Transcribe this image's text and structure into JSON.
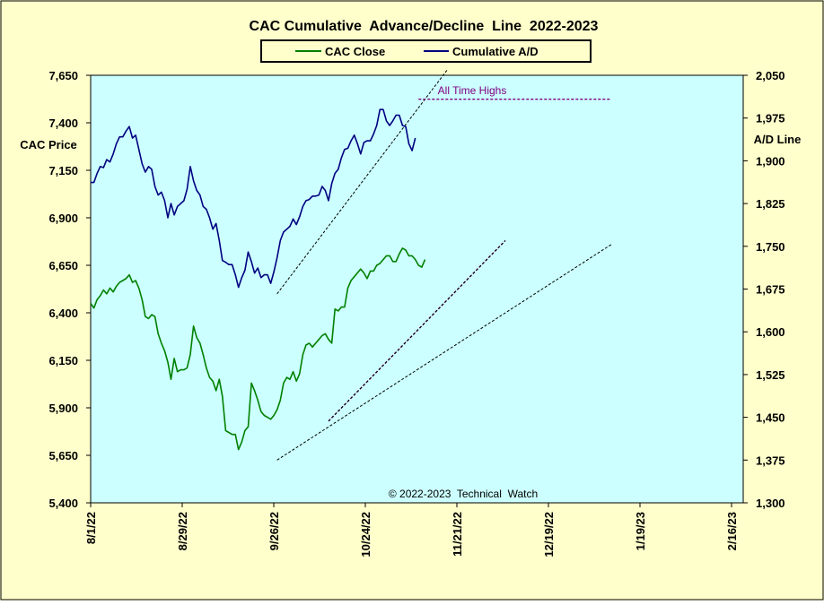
{
  "chart_data": {
    "type": "line",
    "title": "CAC Cumulative  Advance/Decline  Line  2022-2023",
    "legend": {
      "placement": "top-center",
      "entries": [
        {
          "name": "CAC Close",
          "color": "#008000"
        },
        {
          "name": "Cumulative A/D",
          "color": "#000080"
        }
      ]
    },
    "y_left": {
      "label": "CAC Price",
      "range": [
        5400,
        7650
      ],
      "ticks": [
        "7,650",
        "7,400",
        "7,150",
        "6,900",
        "6,650",
        "6,400",
        "6,150",
        "5,900",
        "5,650",
        "5,400"
      ]
    },
    "y_right": {
      "label": "A/D Line",
      "range": [
        1300,
        2050
      ],
      "ticks": [
        "2,050",
        "1,975",
        "1,900",
        "1,825",
        "1,750",
        "1,675",
        "1,600",
        "1,525",
        "1,450",
        "1,375",
        "1,300"
      ]
    },
    "x_ticks": [
      "8/1/22",
      "8/29/22",
      "9/26/22",
      "10/24/22",
      "11/21/22",
      "12/19/22",
      "1/19/23",
      "2/16/23"
    ],
    "x_range_days": [
      0,
      203
    ],
    "plot_background": "#ccffff",
    "frame_background": "#ffffcc",
    "series": [
      {
        "name": "CAC Close",
        "axis": "left",
        "color": "#008000",
        "points": [
          [
            0,
            6450
          ],
          [
            1,
            6425
          ],
          [
            2,
            6470
          ],
          [
            3,
            6490
          ],
          [
            4,
            6520
          ],
          [
            5,
            6500
          ],
          [
            6,
            6530
          ],
          [
            7,
            6510
          ],
          [
            8,
            6540
          ],
          [
            9,
            6560
          ],
          [
            10,
            6570
          ],
          [
            11,
            6580
          ],
          [
            12,
            6600
          ],
          [
            13,
            6560
          ],
          [
            14,
            6570
          ],
          [
            15,
            6530
          ],
          [
            16,
            6470
          ],
          [
            17,
            6380
          ],
          [
            18,
            6370
          ],
          [
            19,
            6390
          ],
          [
            20,
            6380
          ],
          [
            21,
            6290
          ],
          [
            22,
            6240
          ],
          [
            23,
            6200
          ],
          [
            24,
            6140
          ],
          [
            25,
            6050
          ],
          [
            26,
            6160
          ],
          [
            27,
            6090
          ],
          [
            28,
            6100
          ],
          [
            29,
            6100
          ],
          [
            30,
            6110
          ],
          [
            31,
            6180
          ],
          [
            32,
            6330
          ],
          [
            33,
            6270
          ],
          [
            34,
            6240
          ],
          [
            35,
            6180
          ],
          [
            36,
            6110
          ],
          [
            37,
            6060
          ],
          [
            38,
            6040
          ],
          [
            39,
            5990
          ],
          [
            40,
            6050
          ],
          [
            41,
            5960
          ],
          [
            42,
            5780
          ],
          [
            43,
            5770
          ],
          [
            44,
            5760
          ],
          [
            45,
            5760
          ],
          [
            46,
            5680
          ],
          [
            47,
            5720
          ],
          [
            48,
            5780
          ],
          [
            49,
            5800
          ],
          [
            50,
            6030
          ],
          [
            51,
            5990
          ],
          [
            52,
            5940
          ],
          [
            53,
            5880
          ],
          [
            54,
            5860
          ],
          [
            55,
            5850
          ],
          [
            56,
            5840
          ],
          [
            57,
            5860
          ],
          [
            58,
            5890
          ],
          [
            59,
            5940
          ],
          [
            60,
            6030
          ],
          [
            61,
            6060
          ],
          [
            62,
            6050
          ],
          [
            63,
            6090
          ],
          [
            64,
            6040
          ],
          [
            65,
            6080
          ],
          [
            66,
            6180
          ],
          [
            67,
            6230
          ],
          [
            68,
            6240
          ],
          [
            69,
            6220
          ],
          [
            70,
            6240
          ],
          [
            71,
            6260
          ],
          [
            72,
            6280
          ],
          [
            73,
            6290
          ],
          [
            74,
            6260
          ],
          [
            75,
            6240
          ],
          [
            76,
            6420
          ],
          [
            77,
            6410
          ],
          [
            78,
            6430
          ],
          [
            79,
            6430
          ],
          [
            80,
            6530
          ],
          [
            81,
            6570
          ],
          [
            82,
            6590
          ],
          [
            83,
            6610
          ],
          [
            84,
            6630
          ],
          [
            85,
            6610
          ],
          [
            86,
            6580
          ],
          [
            87,
            6620
          ],
          [
            88,
            6620
          ],
          [
            89,
            6650
          ],
          [
            90,
            6660
          ],
          [
            91,
            6680
          ],
          [
            92,
            6700
          ],
          [
            93,
            6700
          ],
          [
            94,
            6670
          ],
          [
            95,
            6670
          ],
          [
            96,
            6710
          ],
          [
            97,
            6740
          ],
          [
            98,
            6730
          ],
          [
            99,
            6700
          ],
          [
            100,
            6700
          ],
          [
            101,
            6680
          ],
          [
            102,
            6650
          ],
          [
            103,
            6640
          ],
          [
            104,
            6680
          ]
        ]
      },
      {
        "name": "Cumulative A/D",
        "axis": "right",
        "color": "#000080",
        "points": [
          [
            0,
            1862
          ],
          [
            1,
            1862
          ],
          [
            2,
            1878
          ],
          [
            3,
            1890
          ],
          [
            4,
            1888
          ],
          [
            5,
            1902
          ],
          [
            6,
            1898
          ],
          [
            7,
            1912
          ],
          [
            8,
            1930
          ],
          [
            9,
            1942
          ],
          [
            10,
            1942
          ],
          [
            11,
            1952
          ],
          [
            12,
            1960
          ],
          [
            13,
            1940
          ],
          [
            14,
            1945
          ],
          [
            15,
            1920
          ],
          [
            16,
            1895
          ],
          [
            17,
            1880
          ],
          [
            18,
            1890
          ],
          [
            19,
            1885
          ],
          [
            20,
            1855
          ],
          [
            21,
            1840
          ],
          [
            22,
            1845
          ],
          [
            23,
            1830
          ],
          [
            24,
            1800
          ],
          [
            25,
            1825
          ],
          [
            26,
            1805
          ],
          [
            27,
            1820
          ],
          [
            28,
            1825
          ],
          [
            29,
            1830
          ],
          [
            30,
            1850
          ],
          [
            31,
            1890
          ],
          [
            32,
            1865
          ],
          [
            33,
            1848
          ],
          [
            34,
            1840
          ],
          [
            35,
            1820
          ],
          [
            36,
            1815
          ],
          [
            37,
            1800
          ],
          [
            38,
            1780
          ],
          [
            39,
            1790
          ],
          [
            40,
            1760
          ],
          [
            41,
            1725
          ],
          [
            42,
            1722
          ],
          [
            43,
            1718
          ],
          [
            44,
            1718
          ],
          [
            45,
            1700
          ],
          [
            46,
            1678
          ],
          [
            47,
            1695
          ],
          [
            48,
            1708
          ],
          [
            49,
            1740
          ],
          [
            50,
            1723
          ],
          [
            51,
            1703
          ],
          [
            52,
            1712
          ],
          [
            53,
            1695
          ],
          [
            54,
            1700
          ],
          [
            55,
            1700
          ],
          [
            56,
            1685
          ],
          [
            57,
            1705
          ],
          [
            58,
            1730
          ],
          [
            59,
            1760
          ],
          [
            60,
            1775
          ],
          [
            61,
            1780
          ],
          [
            62,
            1785
          ],
          [
            63,
            1798
          ],
          [
            64,
            1788
          ],
          [
            65,
            1802
          ],
          [
            66,
            1820
          ],
          [
            67,
            1830
          ],
          [
            68,
            1832
          ],
          [
            69,
            1838
          ],
          [
            70,
            1838
          ],
          [
            71,
            1840
          ],
          [
            72,
            1855
          ],
          [
            73,
            1848
          ],
          [
            74,
            1830
          ],
          [
            75,
            1860
          ],
          [
            76,
            1878
          ],
          [
            77,
            1885
          ],
          [
            78,
            1905
          ],
          [
            79,
            1920
          ],
          [
            80,
            1922
          ],
          [
            81,
            1935
          ],
          [
            82,
            1945
          ],
          [
            83,
            1930
          ],
          [
            84,
            1912
          ],
          [
            85,
            1932
          ],
          [
            86,
            1935
          ],
          [
            87,
            1935
          ],
          [
            88,
            1947
          ],
          [
            89,
            1962
          ],
          [
            90,
            1990
          ],
          [
            91,
            1990
          ],
          [
            92,
            1970
          ],
          [
            93,
            1962
          ],
          [
            94,
            1970
          ],
          [
            95,
            1980
          ],
          [
            96,
            1980
          ],
          [
            97,
            1962
          ],
          [
            98,
            1960
          ],
          [
            99,
            1930
          ],
          [
            100,
            1918
          ],
          [
            101,
            1940
          ]
        ]
      }
    ],
    "trendlines": [
      {
        "axis": "left",
        "style": "dashed",
        "color": "#000000",
        "from": [
          58,
          6500
        ],
        "to": [
          111,
          7680
        ]
      },
      {
        "axis": "left",
        "style": "dashed",
        "color": "#000000",
        "from": [
          58,
          5625
        ],
        "to": [
          162,
          6760
        ]
      },
      {
        "axis": "left",
        "style": "dashed",
        "color": "#800080",
        "from": [
          74,
          5830
        ],
        "to": [
          129,
          6780
        ]
      },
      {
        "axis": "left",
        "style": "dashed",
        "color": "#000000",
        "from": [
          74,
          5830
        ],
        "to": [
          129,
          6780
        ]
      },
      {
        "axis": "right",
        "style": "dashed",
        "color": "#800080",
        "from": [
          102,
          2008
        ],
        "to": [
          162,
          2008
        ],
        "label": "All Time Highs"
      }
    ],
    "annotations": [
      {
        "text": "All Time Highs",
        "color": "#800080"
      },
      {
        "text": "© 2022-2023  Technical  Watch",
        "color": "#000000"
      }
    ],
    "grid": false
  }
}
